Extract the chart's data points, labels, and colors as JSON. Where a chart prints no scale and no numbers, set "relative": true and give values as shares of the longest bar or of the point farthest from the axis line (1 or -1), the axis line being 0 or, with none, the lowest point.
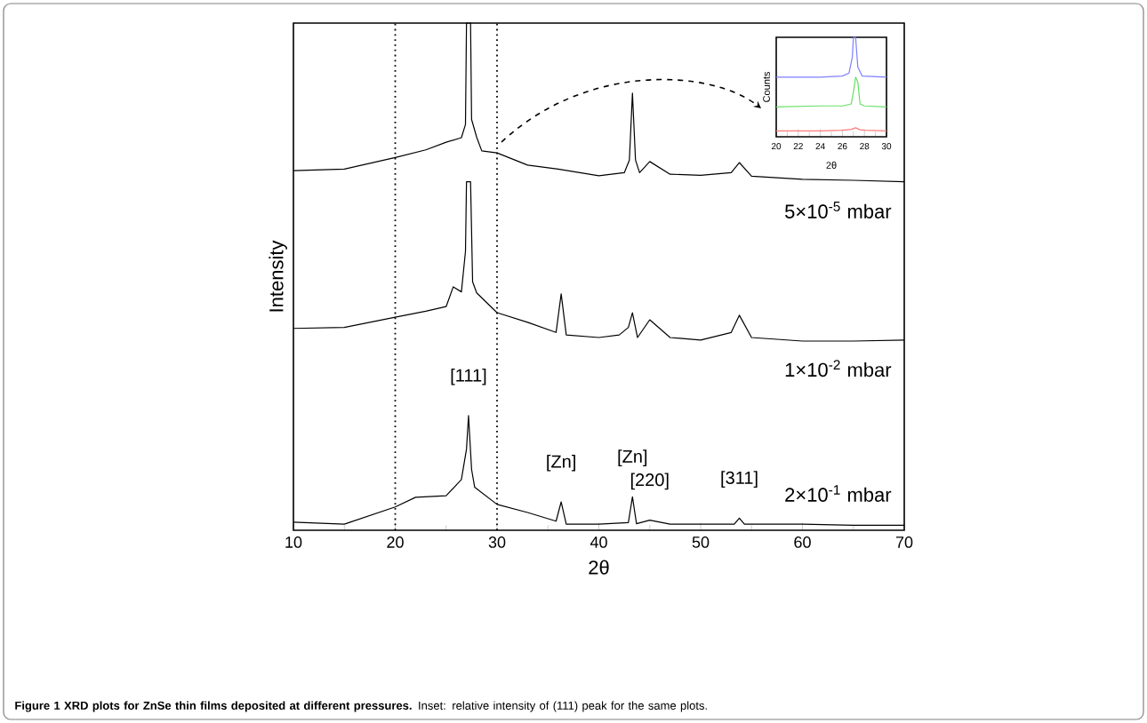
{
  "chart_data": [
    {
      "type": "line",
      "relative": true,
      "xlabel": "2θ",
      "ylabel": "Intensity",
      "xlim": [
        10,
        70
      ],
      "xticks": [
        10,
        20,
        30,
        40,
        50,
        60,
        70
      ],
      "marker": "none",
      "line_style": "solid",
      "series": [
        {
          "name": "5×10$^{-5}$ mbar",
          "color": "#000000",
          "x": [
            10,
            15,
            20,
            23,
            25,
            26.5,
            26.9,
            27.0,
            27.4,
            27.5,
            28,
            28.5,
            30,
            33,
            36,
            40,
            42.5,
            43.0,
            43.3,
            43.6,
            44,
            45,
            47,
            50,
            53,
            53.8,
            55,
            60,
            65,
            70
          ],
          "values": [
            0.709,
            0.712,
            0.735,
            0.75,
            0.765,
            0.774,
            0.8,
            1.0,
            1.0,
            0.81,
            0.775,
            0.748,
            0.744,
            0.72,
            0.712,
            0.699,
            0.705,
            0.73,
            0.862,
            0.73,
            0.705,
            0.727,
            0.702,
            0.7,
            0.705,
            0.725,
            0.698,
            0.692,
            0.69,
            0.687
          ]
        },
        {
          "name": "1×10$^{-2}$ mbar",
          "color": "#000000",
          "x": [
            10,
            15,
            20,
            23,
            25,
            25.7,
            26.5,
            26.9,
            27.0,
            27.4,
            27.6,
            28,
            30,
            33,
            35.8,
            36.3,
            36.8,
            40,
            42,
            42.9,
            43.3,
            43.8,
            45,
            47,
            50,
            53,
            53.8,
            55,
            60,
            65,
            70
          ],
          "values": [
            0.398,
            0.4,
            0.42,
            0.432,
            0.441,
            0.48,
            0.47,
            0.55,
            0.687,
            0.687,
            0.49,
            0.468,
            0.429,
            0.41,
            0.39,
            0.466,
            0.385,
            0.38,
            0.385,
            0.4,
            0.429,
            0.38,
            0.415,
            0.38,
            0.375,
            0.39,
            0.424,
            0.38,
            0.373,
            0.373,
            0.375
          ]
        },
        {
          "name": "2×10$^{-1}$ mbar",
          "color": "#000000",
          "x": [
            10,
            15,
            20,
            22,
            25,
            26.5,
            27.0,
            27.2,
            27.5,
            27.8,
            30,
            33,
            35.8,
            36.3,
            36.8,
            40,
            42.9,
            43.3,
            43.7,
            45,
            47,
            50,
            53.3,
            53.8,
            54.3,
            60,
            65,
            70
          ],
          "values": [
            0.016,
            0.012,
            0.046,
            0.065,
            0.068,
            0.1,
            0.16,
            0.226,
            0.12,
            0.085,
            0.051,
            0.035,
            0.018,
            0.056,
            0.012,
            0.012,
            0.015,
            0.066,
            0.013,
            0.02,
            0.012,
            0.012,
            0.012,
            0.024,
            0.012,
            0.012,
            0.01,
            0.01
          ]
        }
      ],
      "ref_lines": [
        {
          "axis": "x",
          "value": 20,
          "line_style": "dotted"
        },
        {
          "axis": "x",
          "value": 30,
          "line_style": "dotted"
        }
      ],
      "annotations": [
        {
          "text": "[111]",
          "x": 27.2,
          "y": 0.226
        },
        {
          "text": "[Zn]",
          "x": 36.3,
          "y": 0.056
        },
        {
          "text": "[Zn]",
          "x": 43.3,
          "y": 0.066
        },
        {
          "text": "[220]",
          "x": 45,
          "y": 0.02
        },
        {
          "text": "[311]",
          "x": 53.8,
          "y": 0.024
        },
        "**Figure 1 XRD plots for ZnSe thin films deposited at different pressures.** Inset: relative intensity of (111) peak for the same plots."
      ]
    },
    {
      "type": "line",
      "relative": true,
      "xlabel": "2θ",
      "ylabel": "Counts",
      "xlim": [
        20,
        30
      ],
      "xticks": [
        20,
        22,
        24,
        26,
        28,
        30
      ],
      "marker": "none",
      "line_style": "solid",
      "series": [
        {
          "color": "#7f7fff",
          "x": [
            20,
            24,
            26,
            26.6,
            26.9,
            27.0,
            27.2,
            27.4,
            27.8,
            30
          ],
          "values": [
            0.6,
            0.6,
            0.61,
            0.64,
            0.8,
            1.0,
            1.0,
            0.7,
            0.61,
            0.6
          ]
        },
        {
          "color": "#66e066",
          "x": [
            20,
            24,
            26,
            26.8,
            27.0,
            27.2,
            27.4,
            27.6,
            28,
            30
          ],
          "values": [
            0.3,
            0.31,
            0.31,
            0.33,
            0.45,
            0.6,
            0.55,
            0.33,
            0.31,
            0.3
          ]
        },
        {
          "color": "#ff7a7a",
          "x": [
            20,
            24,
            26,
            26.8,
            27.2,
            27.6,
            28,
            30
          ],
          "values": [
            0.06,
            0.06,
            0.065,
            0.075,
            0.09,
            0.07,
            0.065,
            0.06
          ]
        }
      ]
    }
  ]
}
